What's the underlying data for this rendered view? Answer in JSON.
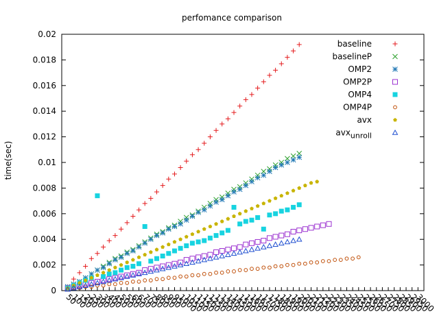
{
  "chart_data": {
    "type": "scatter",
    "title": "perfomance comparison",
    "xlabel": "",
    "ylabel": "time(sec)",
    "ylim": [
      0,
      0.02
    ],
    "yticks": [
      "0",
      "0.002",
      "0.004",
      "0.006",
      "0.008",
      "0.01",
      "0.012",
      "0.014",
      "0.016",
      "0.018",
      "0.02"
    ],
    "grid": false,
    "legend_position": "top-right",
    "categories": [
      "50",
      "100",
      "150",
      "200",
      "250",
      "300",
      "350",
      "400",
      "450",
      "500",
      "550",
      "600",
      "650",
      "700",
      "750",
      "800",
      "850",
      "900",
      "950",
      "1000",
      "1050",
      "1100",
      "1150",
      "1200",
      "1250",
      "1300",
      "1350",
      "1400",
      "1450",
      "1500",
      "1550",
      "1600",
      "1650",
      "1700",
      "1750",
      "1800",
      "1850",
      "1900",
      "1950",
      "2000",
      "2050",
      "2100",
      "2150",
      "2200",
      "2250",
      "2300",
      "2350",
      "2400",
      "2450",
      "2500",
      "2550",
      "2600",
      "2650",
      "2700",
      "2750",
      "2800",
      "2850",
      "2900",
      "2950",
      "3000"
    ],
    "series": [
      {
        "name": "baseline",
        "color": "#e41a1c",
        "marker": "plus",
        "values": [
          0.0003,
          0.0009,
          0.0014,
          0.0019,
          0.0025,
          0.0029,
          0.0034,
          0.0039,
          0.0043,
          0.0048,
          0.0053,
          0.0058,
          0.0063,
          0.0068,
          0.0072,
          0.0077,
          0.0082,
          0.0087,
          0.0091,
          0.0096,
          0.0101,
          0.0106,
          0.011,
          0.0115,
          0.012,
          0.0125,
          0.013,
          0.0134,
          0.0139,
          0.0144,
          0.0149,
          0.0153,
          0.0158,
          0.0163,
          0.0168,
          0.0172,
          0.0177,
          0.0182,
          0.0187,
          0.0192,
          null,
          null,
          null,
          null,
          null,
          null,
          null,
          null,
          null,
          null,
          null,
          null,
          null,
          null,
          null,
          null,
          null,
          null,
          null,
          null
        ]
      },
      {
        "name": "baselineP",
        "color": "#2ca02c",
        "marker": "cross",
        "values": [
          0.0003,
          0.0005,
          0.0007,
          0.001,
          0.0013,
          0.0016,
          0.0019,
          0.0022,
          0.0025,
          0.0027,
          0.003,
          0.0032,
          0.0035,
          0.0038,
          0.0041,
          0.0044,
          0.0046,
          0.0049,
          0.0051,
          0.0054,
          0.0057,
          0.0059,
          0.0062,
          0.0065,
          0.0068,
          0.0071,
          0.0073,
          0.0076,
          0.0079,
          0.0081,
          0.0084,
          0.0087,
          0.009,
          0.0093,
          0.0095,
          0.0098,
          0.01,
          0.0103,
          0.0105,
          0.0107,
          null,
          null,
          null,
          null,
          null,
          null,
          null,
          null,
          null,
          null,
          null,
          null,
          null,
          null,
          null,
          null,
          null,
          null,
          null,
          null
        ]
      },
      {
        "name": "OMP2",
        "color": "#1f77b4",
        "marker": "star",
        "values": [
          0.0003,
          0.0005,
          0.0007,
          0.001,
          0.0013,
          0.0016,
          0.0018,
          0.0021,
          0.0024,
          0.0026,
          0.0029,
          0.0031,
          0.0034,
          0.0037,
          0.004,
          0.0043,
          0.0045,
          0.0048,
          0.005,
          0.0052,
          0.0055,
          0.0058,
          0.0061,
          0.0063,
          0.0066,
          0.0069,
          0.0071,
          0.0074,
          0.0077,
          0.0079,
          0.0082,
          0.0085,
          0.0088,
          0.009,
          0.0093,
          0.0096,
          0.0098,
          0.01,
          0.0102,
          0.0104,
          null,
          null,
          null,
          null,
          null,
          null,
          null,
          null,
          null,
          null,
          null,
          null,
          null,
          null,
          null,
          null,
          null,
          null,
          null,
          null
        ]
      },
      {
        "name": "OMP2P",
        "color": "#9b30d0",
        "marker": "open-square",
        "values": [
          0.0002,
          0.0003,
          0.0004,
          0.0005,
          0.0006,
          0.0007,
          0.0008,
          0.0009,
          0.001,
          0.0011,
          0.0012,
          0.0013,
          0.0014,
          0.0016,
          0.0017,
          0.0018,
          0.0019,
          0.002,
          0.0021,
          0.0022,
          0.0024,
          0.0025,
          0.0026,
          0.0027,
          0.0028,
          0.003,
          0.0031,
          0.0032,
          0.0033,
          0.0034,
          0.0036,
          0.0037,
          0.0038,
          0.0039,
          0.0041,
          0.0042,
          0.0043,
          0.0044,
          0.0046,
          0.0047,
          0.0048,
          0.0049,
          0.005,
          0.0051,
          0.0052,
          null,
          null,
          null,
          null,
          null,
          null,
          null,
          null,
          null,
          null,
          null,
          null,
          null,
          null,
          null
        ]
      },
      {
        "name": "OMP4",
        "color": "#17d3e0",
        "marker": "filled-square",
        "values": [
          0.0002,
          0.0004,
          0.0006,
          0.0008,
          0.001,
          0.0074,
          0.0011,
          0.0013,
          0.0014,
          0.0016,
          0.0018,
          0.0019,
          0.0021,
          0.005,
          0.0023,
          0.0025,
          0.0027,
          0.0029,
          0.0031,
          0.0033,
          0.0035,
          0.0037,
          0.0038,
          0.0039,
          0.0041,
          0.0043,
          0.0045,
          0.0047,
          0.0065,
          0.0052,
          0.0054,
          0.0055,
          0.0057,
          0.0048,
          0.0059,
          0.006,
          0.0062,
          0.0063,
          0.0065,
          0.0067,
          null,
          null,
          null,
          null,
          null,
          null,
          null,
          null,
          null,
          null,
          null,
          null,
          null,
          null,
          null,
          null,
          null,
          null,
          null,
          null
        ]
      },
      {
        "name": "OMP4P",
        "color": "#c0500a",
        "marker": "open-circle",
        "values": [
          0.0001,
          0.0002,
          0.0002,
          0.0003,
          0.0003,
          0.0004,
          0.0004,
          0.0005,
          0.0005,
          0.0006,
          0.0006,
          0.0007,
          0.0007,
          0.0008,
          0.0008,
          0.0009,
          0.0009,
          0.001,
          0.001,
          0.0011,
          0.0011,
          0.0012,
          0.0012,
          0.0013,
          0.0013,
          0.0014,
          0.0014,
          0.0015,
          0.0015,
          0.0016,
          0.0016,
          0.0017,
          0.0017,
          0.0018,
          0.0018,
          0.0019,
          0.0019,
          0.002,
          0.002,
          0.0021,
          0.0021,
          0.0022,
          0.0022,
          0.0023,
          0.0023,
          0.0024,
          0.0024,
          0.0025,
          0.0025,
          0.0026,
          null,
          null,
          null,
          null,
          null,
          null,
          null,
          null,
          null,
          null
        ]
      },
      {
        "name": "avx",
        "color": "#c8b400",
        "marker": "filled-pentagon",
        "values": [
          0.0002,
          0.0004,
          0.0006,
          0.0008,
          0.001,
          0.0012,
          0.0014,
          0.0016,
          0.0018,
          0.002,
          0.0022,
          0.0024,
          0.0026,
          0.0028,
          0.003,
          0.0032,
          0.0034,
          0.0036,
          0.0038,
          0.004,
          0.0042,
          0.0044,
          0.0046,
          0.0048,
          0.005,
          0.0052,
          0.0054,
          0.0056,
          0.0058,
          0.006,
          0.0062,
          0.0064,
          0.0066,
          0.0068,
          0.007,
          0.0072,
          0.0074,
          0.0076,
          0.0078,
          0.008,
          0.0082,
          0.0084,
          0.0085,
          null,
          null,
          null,
          null,
          null,
          null,
          null,
          null,
          null,
          null,
          null,
          null,
          null,
          null,
          null,
          null,
          null
        ]
      },
      {
        "name": "avx",
        "name_subscript": "unroll",
        "color": "#1f4fd0",
        "marker": "open-triangle",
        "values": [
          0.0001,
          0.0002,
          0.0003,
          0.0004,
          0.0005,
          0.0006,
          0.0007,
          0.0008,
          0.0009,
          0.001,
          0.0011,
          0.0012,
          0.0013,
          0.0014,
          0.0015,
          0.0016,
          0.0017,
          0.0018,
          0.0019,
          0.002,
          0.0021,
          0.0022,
          0.0023,
          0.0024,
          0.0025,
          0.0026,
          0.0027,
          0.0028,
          0.0029,
          0.003,
          0.0031,
          0.0032,
          0.0033,
          0.0034,
          0.0035,
          0.0036,
          0.0037,
          0.0038,
          0.0039,
          0.004,
          null,
          null,
          null,
          null,
          null,
          null,
          null,
          null,
          null,
          null,
          null,
          null,
          null,
          null,
          null,
          null,
          null,
          null,
          null,
          null
        ]
      }
    ]
  }
}
